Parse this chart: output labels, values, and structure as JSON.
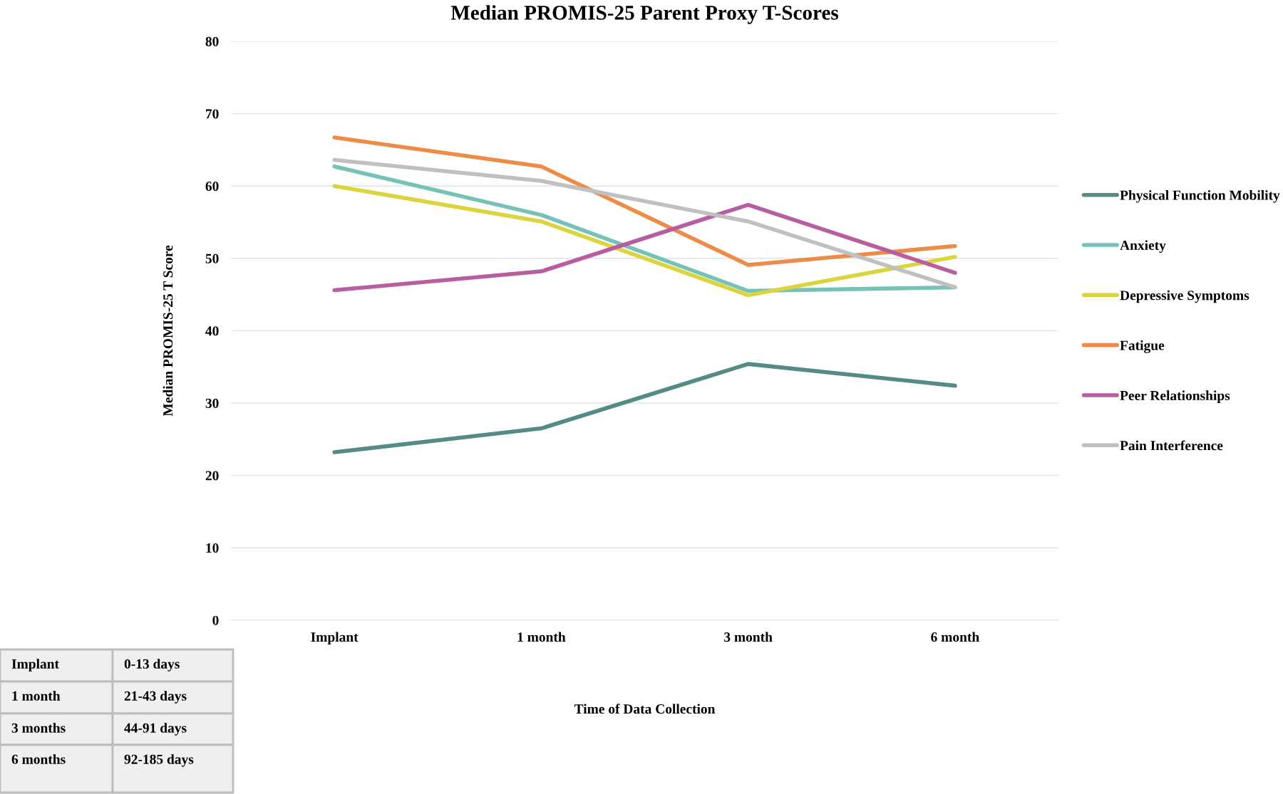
{
  "chart_data": {
    "type": "line",
    "title": "Median PROMIS-25 Parent Proxy T-Scores",
    "xlabel": "Time of Data Collection",
    "ylabel": "Median PROMIS-25 T Score",
    "categories": [
      "Implant",
      "1 month",
      "3 month",
      "6 month"
    ],
    "series": [
      {
        "name": "Physical Function Mobility",
        "color": "#548b86",
        "values": [
          23.2,
          26.5,
          35.4,
          32.4
        ]
      },
      {
        "name": "Anxiety",
        "color": "#76c2b9",
        "values": [
          62.7,
          56.0,
          45.5,
          46.0
        ]
      },
      {
        "name": "Depressive Symptoms",
        "color": "#dbd43f",
        "values": [
          60.0,
          55.1,
          44.9,
          50.2
        ]
      },
      {
        "name": "Fatigue",
        "color": "#ec8c48",
        "values": [
          66.7,
          62.7,
          49.1,
          51.7
        ]
      },
      {
        "name": "Peer Relationships",
        "color": "#b85ea0",
        "values": [
          45.6,
          48.2,
          57.4,
          48.0
        ]
      },
      {
        "name": "Pain Interference",
        "color": "#c0c0c0",
        "values": [
          63.6,
          60.7,
          55.1,
          46.0
        ]
      }
    ],
    "ylim": [
      0,
      80
    ],
    "yticks": [
      0,
      10,
      20,
      30,
      40,
      50,
      60,
      70,
      80
    ],
    "grid": "y",
    "legend": "right",
    "marker": "none",
    "line_style": "solid",
    "annotations": [
      "Implant",
      "0-13 days",
      "1 month",
      "21-43 days",
      "3 months",
      "44-91 days",
      "6 months",
      "92-185 days"
    ]
  }
}
